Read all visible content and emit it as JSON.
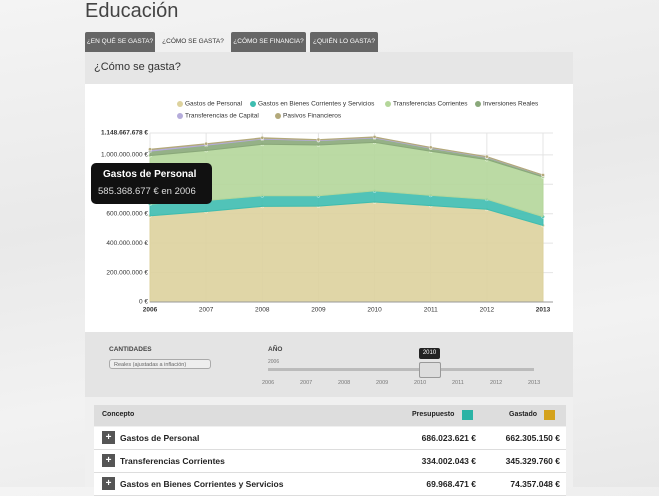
{
  "page": {
    "title": "Educación",
    "tabs": [
      "¿EN QUÉ SE GASTA?",
      "¿CÓMO SE GASTA?",
      "¿CÓMO SE FINANCIA?",
      "¿QUIÉN LO GASTA?"
    ],
    "panel_title": "¿Cómo se gasta?",
    "tooltip": {
      "title": "Gastos de Personal",
      "text": "585.368.677 € en 2006"
    },
    "controls": {
      "amounts_label": "CANTIDADES",
      "amounts_select": "Reales (ajustadas a inflación)",
      "year_label": "AÑO",
      "year_selected": "2010",
      "year_start": "2006",
      "year_ticks": [
        "2006",
        "2007",
        "2008",
        "2009",
        "2010",
        "2011",
        "2012",
        "2013"
      ]
    },
    "table": {
      "headers": [
        "Concepto",
        "Presupuesto",
        "Gastado"
      ],
      "rows": [
        [
          "Gastos de Personal",
          "686.023.621 €",
          "662.305.150 €"
        ],
        [
          "Transferencias Corrientes",
          "334.002.043 €",
          "345.329.760 €"
        ],
        [
          "Gastos en Bienes Corrientes y Servicios",
          "69.968.471 €",
          "74.357.048 €"
        ]
      ]
    }
  },
  "chart_data": {
    "type": "stacked_area",
    "categories": [
      "2006",
      "2007",
      "2008",
      "2009",
      "2010",
      "2011",
      "2012",
      "2013"
    ],
    "series": [
      {
        "name": "Gastos de Personal",
        "color": "#ddd29d",
        "values": [
          585368677,
          615000000,
          650000000,
          652000000,
          680000000,
          655000000,
          630000000,
          520000000
        ]
      },
      {
        "name": "Gastos en Bienes Corrientes y Servicios",
        "color": "#3ebdb0",
        "values": [
          80000000,
          75000000,
          72000000,
          70000000,
          75000000,
          70000000,
          68000000,
          60000000
        ]
      },
      {
        "name": "Transferencias Corrientes",
        "color": "#b4d69a",
        "values": [
          330000000,
          340000000,
          350000000,
          345000000,
          330000000,
          300000000,
          270000000,
          270000000
        ]
      },
      {
        "name": "Inversiones Reales",
        "color": "#8aa87a",
        "values": [
          30000000,
          35000000,
          35000000,
          30000000,
          30000000,
          20000000,
          15000000,
          10000000
        ]
      },
      {
        "name": "Transferencias de Capital",
        "color": "#b5acdb",
        "values": [
          10000000,
          8000000,
          6000000,
          5000000,
          5000000,
          4000000,
          3000000,
          2000000
        ]
      },
      {
        "name": "Pasivos Financieros",
        "color": "#b3a97a",
        "values": [
          3000000,
          3000000,
          3000000,
          2000000,
          2000000,
          2000000,
          2000000,
          1000000
        ]
      }
    ],
    "ylim": [
      0,
      1148667678
    ],
    "yticks": [
      {
        "value": 0,
        "label": "0 €"
      },
      {
        "value": 200000000,
        "label": "200.000.000 €"
      },
      {
        "value": 400000000,
        "label": "400.000.000 €"
      },
      {
        "value": 600000000,
        "label": "600.000.000 €"
      },
      {
        "value": 800000000,
        "label": "800.000.000 €"
      },
      {
        "value": 1000000000,
        "label": "1.000.000.000 €"
      },
      {
        "value": 1148667678,
        "label": "1.148.667.678 €"
      }
    ],
    "grid": true
  }
}
